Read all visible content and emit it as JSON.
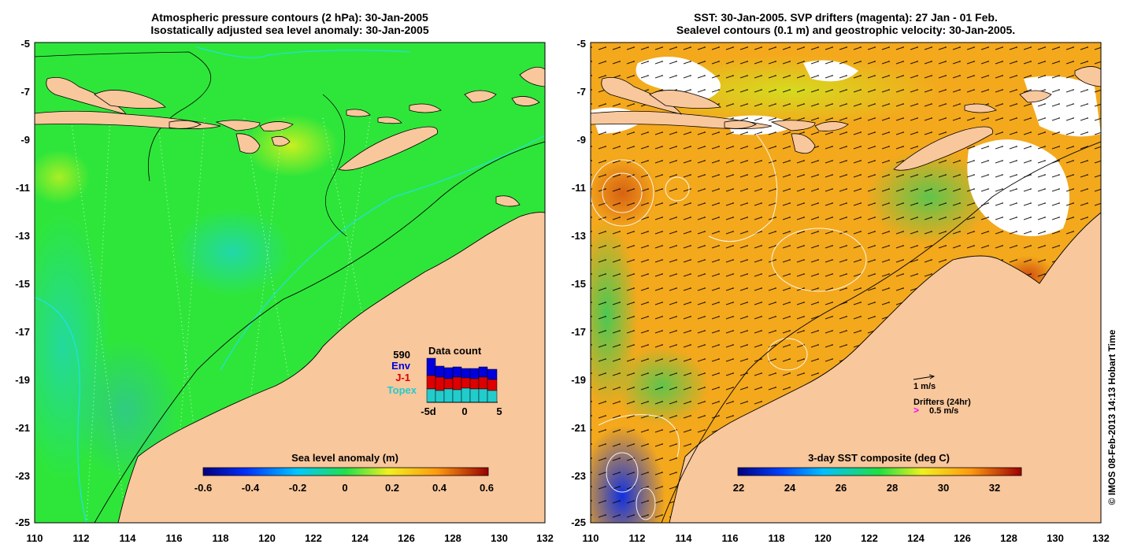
{
  "left_panel": {
    "title_line1": "Atmospheric pressure contours (2 hPa): 30-Jan-2005",
    "title_line2": "Isostatically adjusted sea level anomaly: 30-Jan-2005",
    "colorbar_title": "Sea level anomaly (m)",
    "colorbar_ticks": [
      "-0.6",
      "-0.4",
      "-0.2",
      "0",
      "0.2",
      "0.4",
      "0.6"
    ],
    "data_count": {
      "title": "Data count",
      "max_label": "590",
      "labels": [
        "Env",
        "J-1",
        "Topex"
      ],
      "colors": [
        "#0000dd",
        "#dd0000",
        "#22cccc"
      ],
      "x_ticks": [
        "-5d",
        "0",
        "5"
      ]
    }
  },
  "right_panel": {
    "title_line1": "SST: 30-Jan-2005. SVP drifters (magenta): 27 Jan - 01 Feb.",
    "title_line2": "Sealevel contours (0.1 m) and geostrophic velocity: 30-Jan-2005.",
    "colorbar_title": "3-day SST composite (deg C)",
    "colorbar_ticks": [
      "22",
      "24",
      "26",
      "28",
      "30",
      "32"
    ],
    "velocity_key": "1 m/s",
    "drifters_key": "Drifters (24hr)",
    "drifters_speed": "0.5 m/s",
    "drifter_marker": ">"
  },
  "axes": {
    "y_ticks": [
      "-5",
      "-7",
      "-9",
      "-11",
      "-13",
      "-15",
      "-17",
      "-19",
      "-21",
      "-23",
      "-25"
    ],
    "x_ticks": [
      "110",
      "112",
      "114",
      "116",
      "118",
      "120",
      "122",
      "124",
      "126",
      "128",
      "130",
      "132"
    ]
  },
  "credit": "© IMOS 08-Feb-2013 14:13 Hobart Time",
  "colors": {
    "land": "#f9c79c",
    "ocean_left": "#2ee63a",
    "ocean_right": "#f4a81c",
    "contour_cyan": "#22e0e0",
    "contour_black": "#000000"
  }
}
